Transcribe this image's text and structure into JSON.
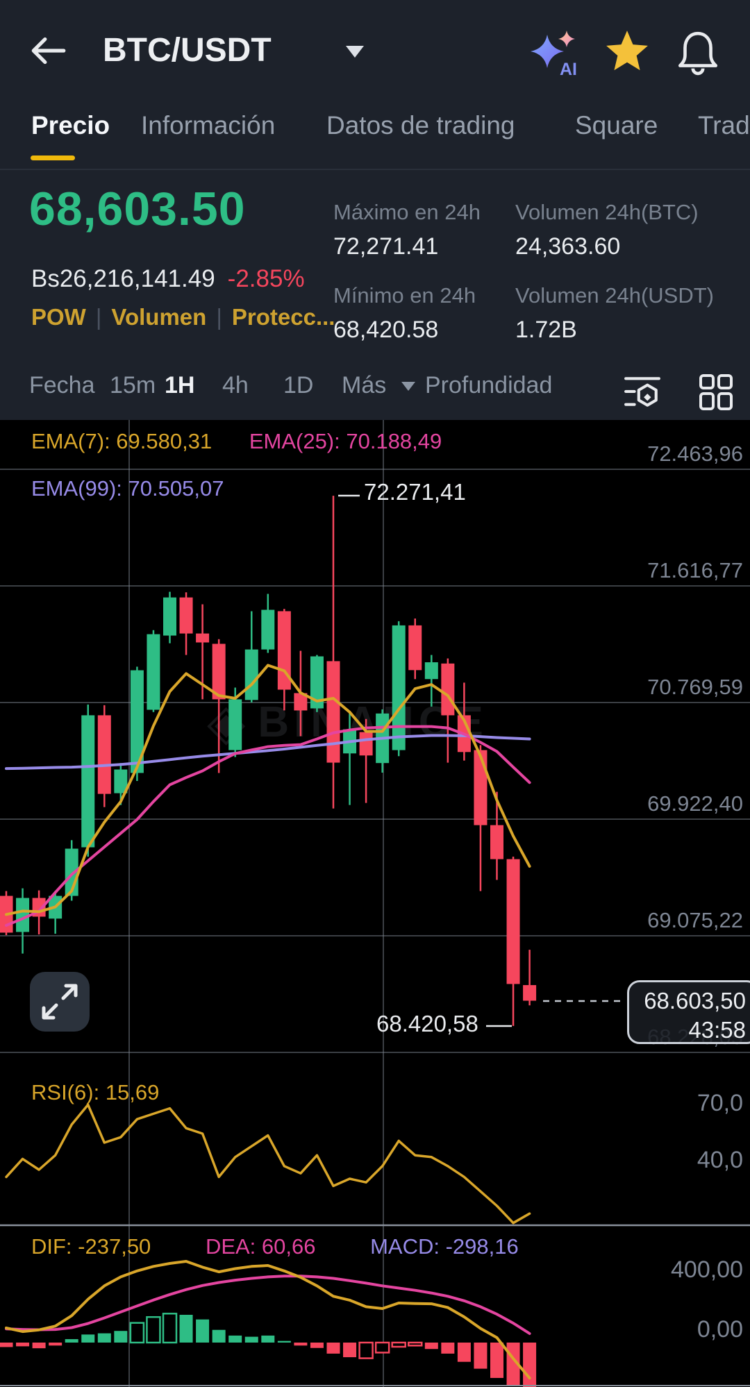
{
  "header": {
    "title": "BTC/USDT",
    "tabs": [
      {
        "label": "Precio",
        "active": true
      },
      {
        "label": "Información",
        "active": false
      },
      {
        "label": "Datos de trading",
        "active": false
      },
      {
        "label": "Square",
        "active": false
      },
      {
        "label": "Trad",
        "active": false
      }
    ]
  },
  "price_block": {
    "price": "68,603.50",
    "fiat": "Bs26,216,141.49",
    "change": "-2.85%",
    "badges": [
      "POW",
      "Volumen",
      "Protecc..."
    ]
  },
  "stats": [
    {
      "label": "Máximo en 24h",
      "value": "72,271.41"
    },
    {
      "label": "Volumen 24h(BTC)",
      "value": "24,363.60"
    },
    {
      "label": "Mínimo en 24h",
      "value": "68,420.58"
    },
    {
      "label": "Volumen 24h(USDT)",
      "value": "1.72B"
    }
  ],
  "toolbar": {
    "items": [
      "Fecha",
      "15m",
      "1H",
      "4h",
      "1D",
      "Más",
      "Profundidad"
    ],
    "active": "1H"
  },
  "chart_data": {
    "type": "candlestick+indicators",
    "title": "BTC/USDT 1H candlestick chart with EMA(7,25,99), RSI(6), MACD",
    "y_axis": {
      "labels": [
        "72.463,96",
        "71.616,77",
        "70.769,59",
        "69.922,40",
        "69.075,22",
        "68.228,05"
      ],
      "values": [
        72463.96,
        71616.77,
        70769.59,
        69922.4,
        69075.22,
        68228.05
      ]
    },
    "legend": {
      "ema7": "EMA(7): 69.580,31",
      "ema25": "EMA(25): 70.188,49",
      "ema99": "EMA(99): 70.505,07"
    },
    "annotations": {
      "high": "72.271,41",
      "low": "68.420,58"
    },
    "last_price_tag": {
      "price": "68.603,50",
      "countdown": "43:58"
    },
    "watermark": "BINANCE",
    "candles": [
      [
        69365,
        69400,
        69080,
        69098
      ],
      [
        69103,
        69420,
        68946,
        69350
      ],
      [
        69350,
        69405,
        69085,
        69214
      ],
      [
        69200,
        69400,
        69090,
        69365
      ],
      [
        69365,
        69770,
        69330,
        69708
      ],
      [
        69718,
        70755,
        69650,
        70677
      ],
      [
        70677,
        70750,
        70010,
        70106
      ],
      [
        70111,
        70330,
        70025,
        70283
      ],
      [
        70258,
        71030,
        70200,
        71004
      ],
      [
        70717,
        71295,
        70700,
        71266
      ],
      [
        71256,
        71574,
        71200,
        71533
      ],
      [
        71533,
        71570,
        71115,
        71271
      ],
      [
        71271,
        71483,
        70793,
        71206
      ],
      [
        71196,
        71230,
        70258,
        70793
      ],
      [
        70424,
        70878,
        70374,
        70793
      ],
      [
        70788,
        71433,
        70770,
        71155
      ],
      [
        71155,
        71559,
        71130,
        71443
      ],
      [
        71433,
        71450,
        70712,
        70863
      ],
      [
        70838,
        71145,
        70525,
        70712
      ],
      [
        70727,
        71115,
        70700,
        71105
      ],
      [
        71070,
        72271.41,
        70000,
        70333
      ],
      [
        70400,
        70700,
        70025,
        70575
      ],
      [
        70555,
        70650,
        70040,
        70385
      ],
      [
        70330,
        70720,
        70260,
        70690
      ],
      [
        70424,
        71360,
        70380,
        71330
      ],
      [
        71330,
        71380,
        70940,
        71005
      ],
      [
        70940,
        71115,
        70740,
        71062
      ],
      [
        71053,
        71090,
        70333,
        70677
      ],
      [
        70677,
        70914,
        70348,
        70410
      ],
      [
        70424,
        70460,
        69400,
        69879
      ],
      [
        69879,
        70121,
        69481,
        69632
      ],
      [
        69632,
        69650,
        68420.58,
        68725
      ],
      [
        68717,
        68974,
        68570,
        68603.5
      ]
    ],
    "ema7": [
      69230,
      69255,
      69250,
      69285,
      69400,
      69720,
      69900,
      70050,
      70300,
      70600,
      70850,
      70980,
      70900,
      70820,
      70800,
      70900,
      71040,
      71000,
      70840,
      70780,
      70800,
      70700,
      70560,
      70560,
      70720,
      70870,
      70900,
      70820,
      70640,
      70380,
      70060,
      69800,
      69580
    ],
    "ema25": [
      69151,
      69200,
      69254,
      69390,
      69520,
      69620,
      69720,
      69820,
      69920,
      70050,
      70172,
      70225,
      70273,
      70340,
      70399,
      70425,
      70449,
      70458,
      70464,
      70505,
      70550,
      70570,
      70585,
      70590,
      70595,
      70595,
      70595,
      70585,
      70540,
      70480,
      70414,
      70300,
      70188
    ],
    "ema99": [
      70290,
      70292,
      70295,
      70298,
      70300,
      70305,
      70312,
      70320,
      70330,
      70342,
      70355,
      70368,
      70380,
      70390,
      70400,
      70410,
      70420,
      70432,
      70445,
      70458,
      70470,
      70485,
      70500,
      70510,
      70520,
      70525,
      70530,
      70530,
      70528,
      70522,
      70515,
      70510,
      70505
    ],
    "rsi": {
      "label": "RSI(6): 15,69",
      "axis": [
        "70,0",
        "40,0"
      ],
      "values": [
        36,
        46,
        40,
        48,
        65,
        76,
        55,
        58,
        68,
        71,
        74,
        63,
        60,
        36,
        47,
        53,
        59,
        42,
        38,
        48,
        31,
        35,
        33,
        42,
        56,
        48,
        47,
        42,
        36,
        28,
        20,
        10.5,
        15.69
      ]
    },
    "macd": {
      "dif_label": "DIF: -237,50",
      "dea_label": "DEA: 60,66",
      "macd_label": "MACD: -298,16",
      "axis": [
        "400,00",
        "0,00"
      ],
      "dif": [
        98,
        74,
        85,
        110,
        180,
        290,
        380,
        440,
        480,
        510,
        530,
        544,
        505,
        474,
        495,
        510,
        516,
        480,
        437,
        380,
        310,
        284,
        240,
        228,
        265,
        262,
        260,
        235,
        172,
        95,
        33,
        -107,
        -237.5
      ],
      "dea": [
        92,
        88,
        86,
        88,
        100,
        128,
        165,
        205,
        245,
        285,
        322,
        355,
        382,
        402,
        418,
        430,
        440,
        445,
        445,
        440,
        430,
        415,
        398,
        380,
        365,
        350,
        332,
        310,
        280,
        240,
        190,
        130,
        60.66
      ],
      "hist": [
        -30,
        -25,
        -38,
        -20,
        23,
        54,
        62,
        78,
        132,
        171,
        194,
        186,
        155,
        85,
        47,
        39,
        47,
        11,
        -20,
        -36,
        -74,
        -98,
        -105,
        -67,
        -28,
        -20,
        -43,
        -74,
        -129,
        -175,
        -237,
        -284,
        -298.16
      ],
      "hollow_green": [
        8,
        9,
        10
      ],
      "hollow_red": [
        22,
        23,
        24,
        25
      ]
    },
    "colors": {
      "up": "#2EBD85",
      "down": "#F6465D",
      "ema7": "#D9A62A",
      "ema25": "#E445A0",
      "ema99": "#978BE8",
      "yellow": "#D9A62A",
      "pink": "#E445A0",
      "accent": "#F0B90B"
    }
  }
}
